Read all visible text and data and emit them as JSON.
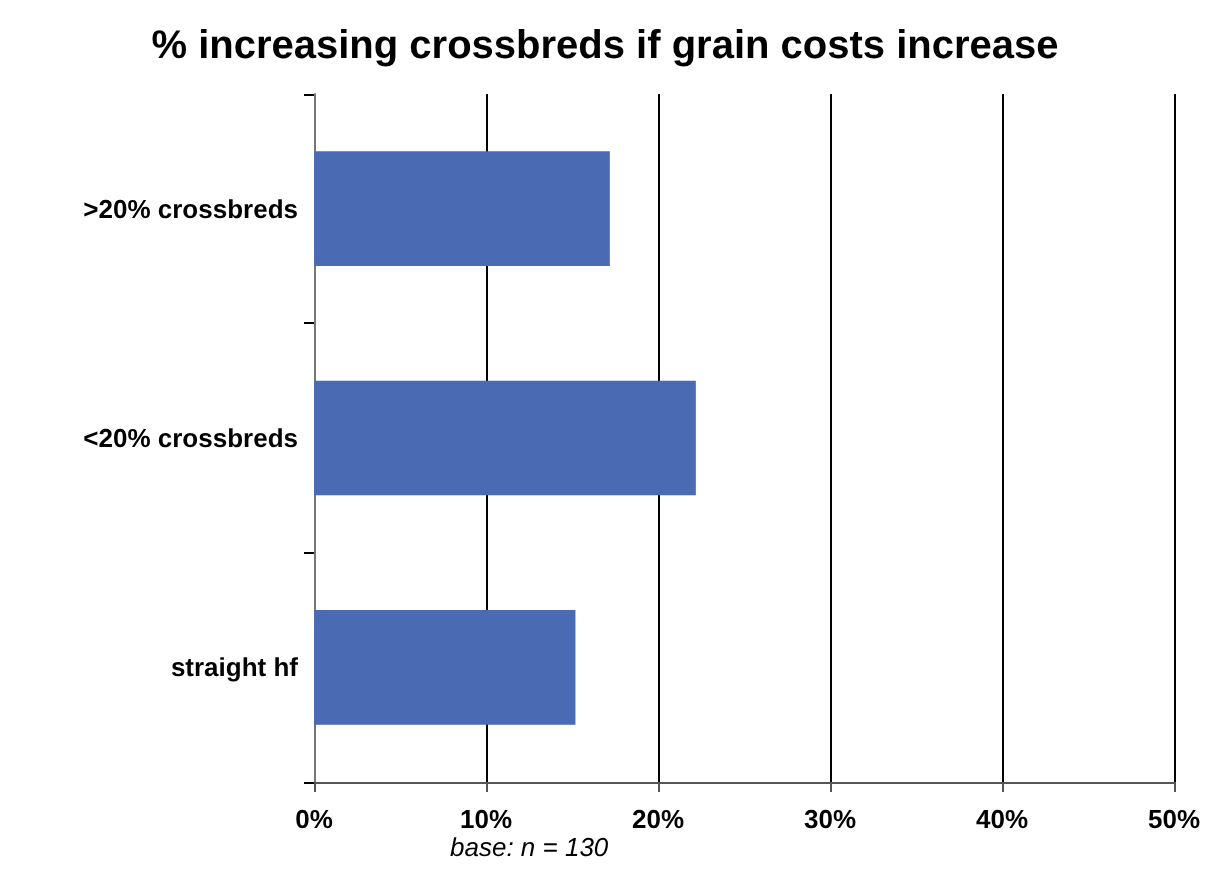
{
  "chart_data": {
    "type": "bar",
    "orientation": "horizontal",
    "title": "% increasing crossbreds if grain costs increase",
    "categories": [
      ">20% crossbreds",
      "<20% crossbreds",
      "straight hf"
    ],
    "values": [
      17.2,
      22.2,
      15.2
    ],
    "color": "#4a6ab3",
    "xlim": [
      0,
      50
    ],
    "xticks": [
      {
        "value": 0,
        "label": "0%"
      },
      {
        "value": 10,
        "label": "10%"
      },
      {
        "value": 20,
        "label": "20%"
      },
      {
        "value": 30,
        "label": "30%"
      },
      {
        "value": 40,
        "label": "40%"
      },
      {
        "value": 50,
        "label": "50%"
      }
    ],
    "grid": "x",
    "annotations": [
      "base: n = 130"
    ]
  }
}
